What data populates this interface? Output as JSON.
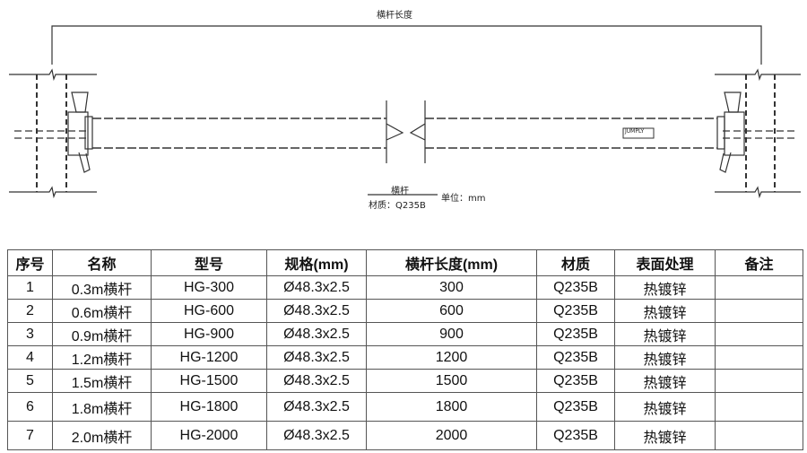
{
  "drawing": {
    "dimension_label": "横杆长度",
    "part_name": "横杆",
    "material_label": "材质：Q235B",
    "unit_label": "单位：mm",
    "stamp_text": "JUMPLY"
  },
  "table": {
    "headers": [
      "序号",
      "名称",
      "型号",
      "规格(mm)",
      "横杆长度(mm)",
      "材质",
      "表面处理",
      "备注"
    ],
    "rows": [
      [
        "1",
        "0.3m横杆",
        "HG-300",
        "Ø48.3x2.5",
        "300",
        "Q235B",
        "热镀锌",
        ""
      ],
      [
        "2",
        "0.6m横杆",
        "HG-600",
        "Ø48.3x2.5",
        "600",
        "Q235B",
        "热镀锌",
        ""
      ],
      [
        "3",
        "0.9m横杆",
        "HG-900",
        "Ø48.3x2.5",
        "900",
        "Q235B",
        "热镀锌",
        ""
      ],
      [
        "4",
        "1.2m横杆",
        "HG-1200",
        "Ø48.3x2.5",
        "1200",
        "Q235B",
        "热镀锌",
        ""
      ],
      [
        "5",
        "1.5m横杆",
        "HG-1500",
        "Ø48.3x2.5",
        "1500",
        "Q235B",
        "热镀锌",
        ""
      ],
      [
        "6",
        "1.8m横杆",
        "HG-1800",
        "Ø48.3x2.5",
        "1800",
        "Q235B",
        "热镀锌",
        ""
      ],
      [
        "7",
        "2.0m横杆",
        "HG-2000",
        "Ø48.3x2.5",
        "2000",
        "Q235B",
        "热镀锌",
        ""
      ]
    ]
  }
}
